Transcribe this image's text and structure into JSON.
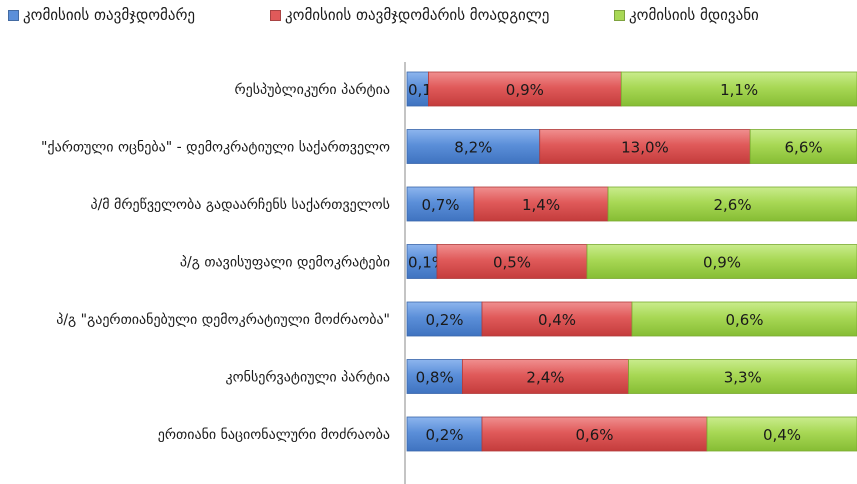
{
  "chart_data": {
    "type": "bar",
    "stacked": true,
    "orientation": "horizontal",
    "categories": [
      "რესპუბლიკური პარტია",
      "\"ქართული ოცნება\" - დემოკრატიული საქართველო",
      "პ/მ მრეწველობა გადაარჩენს საქართველოს",
      "პ/გ თავისუფალი დემოკრატები",
      "პ/გ \"გაერთიანებული დემოკრატიული მოძრაობა\"",
      "კონსერვატიული პარტია",
      "ერთიანი ნაციონალური მოძრაობა"
    ],
    "series": [
      {
        "name": "კომისიის თავმჯდომარე",
        "color": "#5b8fd9",
        "values": [
          0.1,
          8.2,
          0.7,
          0.1,
          0.2,
          0.8,
          0.2
        ],
        "labels": [
          "0,1%",
          "8,2%",
          "0,7%",
          "0,1%",
          "0,2%",
          "0,8%",
          "0,2%"
        ]
      },
      {
        "name": "კომისიის თავმჯდომარის მოადგილე",
        "color": "#e05a5a",
        "values": [
          0.9,
          13.0,
          1.4,
          0.5,
          0.4,
          2.4,
          0.6
        ],
        "labels": [
          "0,9%",
          "13,0%",
          "1,4%",
          "0,5%",
          "0,4%",
          "2,4%",
          "0,6%"
        ]
      },
      {
        "name": "კომისიის მდივანი",
        "color": "#a8d855",
        "values": [
          1.1,
          6.6,
          2.6,
          0.9,
          0.6,
          3.3,
          0.4
        ],
        "labels": [
          "1,1%",
          "6,6%",
          "2,6%",
          "0,9%",
          "0,6%",
          "3,3%",
          "0,4%"
        ]
      }
    ],
    "xlim": [
      0,
      100
    ],
    "legend_position": "top",
    "grid": false
  }
}
